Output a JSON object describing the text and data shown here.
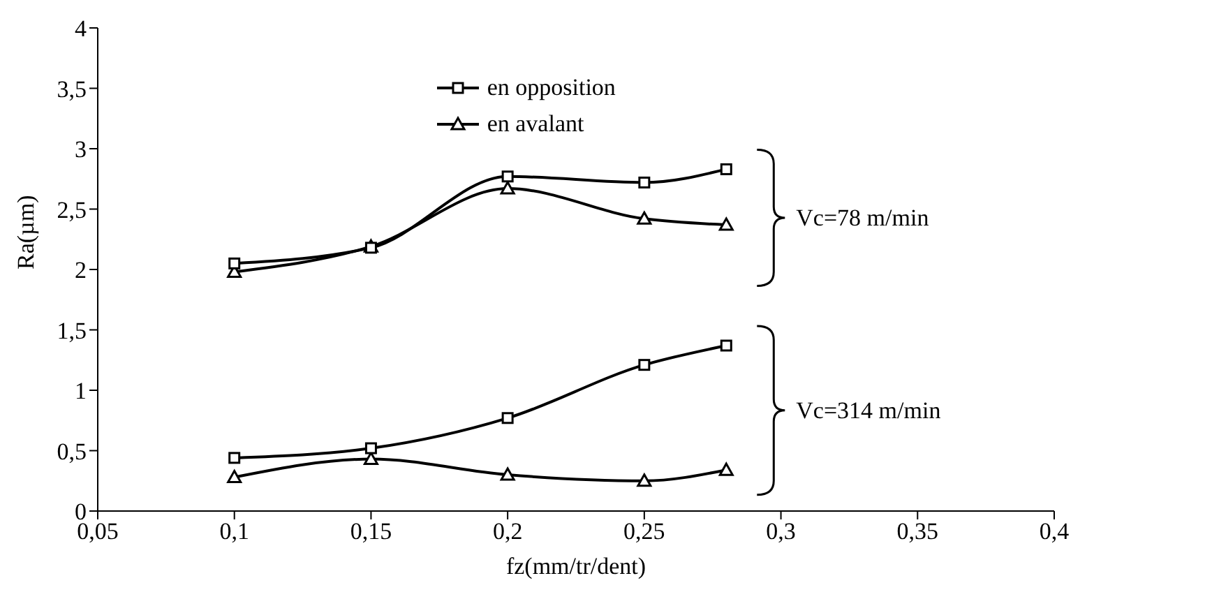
{
  "chart_data": {
    "type": "line",
    "xlabel": "fz(mm/tr/dent)",
    "ylabel": "Ra(µm)",
    "x": [
      0.1,
      0.15,
      0.2,
      0.25,
      0.28
    ],
    "series": [
      {
        "name": "en opposition",
        "color": "#000000",
        "marker": "square",
        "values": [
          2.05,
          2.18,
          2.77,
          2.72,
          2.83
        ]
      },
      {
        "name": "en avalant",
        "color": "#000000",
        "marker": "triangle",
        "values": [
          1.98,
          2.19,
          2.67,
          2.42,
          2.37
        ]
      },
      {
        "color": "#000000",
        "marker": "square",
        "values": [
          0.44,
          0.52,
          0.77,
          1.21,
          1.37
        ]
      },
      {
        "color": "#000000",
        "marker": "triangle",
        "values": [
          0.28,
          0.43,
          0.3,
          0.25,
          0.34
        ]
      }
    ],
    "xlim": [
      0.05,
      0.4
    ],
    "xticks": [
      {
        "value": 0.05,
        "label": "0,05"
      },
      {
        "value": 0.1,
        "label": "0,1"
      },
      {
        "value": 0.15,
        "label": "0,15"
      },
      {
        "value": 0.2,
        "label": "0,2"
      },
      {
        "value": 0.25,
        "label": "0,25"
      },
      {
        "value": 0.3,
        "label": "0,3"
      },
      {
        "value": 0.35,
        "label": "0,35"
      },
      {
        "value": 0.4,
        "label": "0,4"
      }
    ],
    "ylim": [
      0,
      4
    ],
    "yticks": [
      0,
      {
        "value": 0.5,
        "label": "0,5"
      },
      1,
      {
        "value": 1.5,
        "label": "1,5"
      },
      2,
      {
        "value": 2.5,
        "label": "2,5"
      },
      3,
      {
        "value": 3.5,
        "label": "3,5"
      },
      4
    ],
    "annotations": [
      "Vc=78 m/min",
      "Vc=314 m/min"
    ],
    "legend": "top",
    "grid": false,
    "line_style": "solid"
  }
}
